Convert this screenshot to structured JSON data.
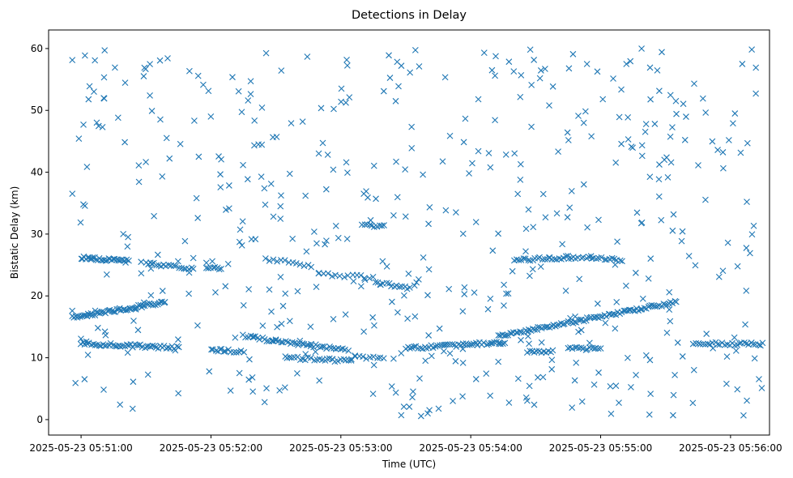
{
  "chart_data": {
    "type": "scatter",
    "title": "Detections in Delay",
    "xlabel": "Time (UTC)",
    "ylabel": "Bistatic Delay (km)",
    "marker": "x",
    "color": "#1f77b4",
    "grid": false,
    "legend": "none",
    "x_unit": "seconds after 2025-05-23 05:51:00 UTC",
    "xlim_seconds": [
      -15,
      318
    ],
    "ylim": [
      -2.5,
      63
    ],
    "xticks": [
      {
        "seconds": 0,
        "label": "2025-05-23 05:51:00"
      },
      {
        "seconds": 60,
        "label": "2025-05-23 05:52:00"
      },
      {
        "seconds": 120,
        "label": "2025-05-23 05:53:00"
      },
      {
        "seconds": 180,
        "label": "2025-05-23 05:54:00"
      },
      {
        "seconds": 240,
        "label": "2025-05-23 05:55:00"
      },
      {
        "seconds": 300,
        "label": "2025-05-23 05:56:00"
      }
    ],
    "yticks": [
      0,
      10,
      20,
      30,
      40,
      50,
      60
    ],
    "tracks": [
      {
        "t_start": -4,
        "t_end": 39,
        "y_start": 16.5,
        "y_end": 19.0,
        "count": 60
      },
      {
        "t_start": 0,
        "t_end": 22,
        "y_start": 26.2,
        "y_end": 25.6,
        "count": 32
      },
      {
        "t_start": 30,
        "t_end": 52,
        "y_start": 25.3,
        "y_end": 24.3,
        "count": 20
      },
      {
        "t_start": 0,
        "t_end": 45,
        "y_start": 12.3,
        "y_end": 11.6,
        "count": 50
      },
      {
        "t_start": 58,
        "t_end": 65,
        "y_start": 24.6,
        "y_end": 24.4,
        "count": 8
      },
      {
        "t_start": 60,
        "t_end": 75,
        "y_start": 11.3,
        "y_end": 11.0,
        "count": 14
      },
      {
        "t_start": 75,
        "t_end": 100,
        "y_start": 13.5,
        "y_end": 12.2,
        "count": 24
      },
      {
        "t_start": 100,
        "t_end": 122,
        "y_start": 12.2,
        "y_end": 11.4,
        "count": 22
      },
      {
        "t_start": 95,
        "t_end": 125,
        "y_start": 10.0,
        "y_end": 9.5,
        "count": 25
      },
      {
        "t_start": 125,
        "t_end": 140,
        "y_start": 10.0,
        "y_end": 10.1,
        "count": 10
      },
      {
        "t_start": 85,
        "t_end": 105,
        "y_start": 26.0,
        "y_end": 25.0,
        "count": 12
      },
      {
        "t_start": 110,
        "t_end": 135,
        "y_start": 23.5,
        "y_end": 23.0,
        "count": 14
      },
      {
        "t_start": 130,
        "t_end": 140,
        "y_start": 31.5,
        "y_end": 31.2,
        "count": 10
      },
      {
        "t_start": 136,
        "t_end": 152,
        "y_start": 22.2,
        "y_end": 21.3,
        "count": 14
      },
      {
        "t_start": 150,
        "t_end": 196,
        "y_start": 11.5,
        "y_end": 12.5,
        "count": 48
      },
      {
        "t_start": 193,
        "t_end": 275,
        "y_start": 13.5,
        "y_end": 19.0,
        "count": 95
      },
      {
        "t_start": 200,
        "t_end": 225,
        "y_start": 25.8,
        "y_end": 26.2,
        "count": 24
      },
      {
        "t_start": 225,
        "t_end": 250,
        "y_start": 26.3,
        "y_end": 25.8,
        "count": 22
      },
      {
        "t_start": 206,
        "t_end": 218,
        "y_start": 11.0,
        "y_end": 11.0,
        "count": 12
      },
      {
        "t_start": 225,
        "t_end": 240,
        "y_start": 11.5,
        "y_end": 11.4,
        "count": 16
      },
      {
        "t_start": 283,
        "t_end": 315,
        "y_start": 12.3,
        "y_end": 12.2,
        "count": 30
      }
    ],
    "background_noise": {
      "t_range": [
        -5,
        315
      ],
      "y_range": [
        0.5,
        60
      ],
      "count": 520
    }
  }
}
